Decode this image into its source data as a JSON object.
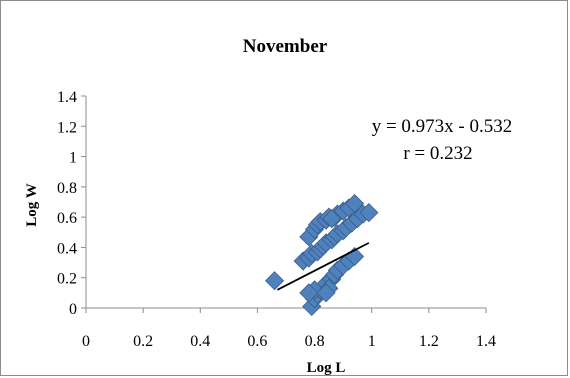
{
  "chart_data": {
    "type": "scatter",
    "title": "November",
    "xlabel": "Log L",
    "ylabel": "Log W",
    "xlim": [
      0,
      1.4
    ],
    "ylim": [
      0,
      1.4
    ],
    "xticks": [
      0,
      0.2,
      0.4,
      0.6,
      0.8,
      1,
      1.2,
      1.4
    ],
    "yticks": [
      0,
      0.2,
      0.4,
      0.6,
      0.8,
      1,
      1.2,
      1.4
    ],
    "grid": false,
    "legend": "none",
    "marker_color": "#4f81bd",
    "marker_stroke": "#385d8a",
    "trendline_color": "#000000",
    "annotation": {
      "equation": "y = 0.973x - 0.532",
      "r_value": "r = 0.232"
    },
    "trendline": {
      "x": [
        0.67,
        0.99
      ],
      "y": [
        0.12,
        0.43
      ]
    },
    "series": [
      {
        "points": [
          [
            0.66,
            0.18
          ],
          [
            0.78,
            0.47
          ],
          [
            0.8,
            0.52
          ],
          [
            0.81,
            0.55
          ],
          [
            0.82,
            0.57
          ],
          [
            0.84,
            0.58
          ],
          [
            0.85,
            0.6
          ],
          [
            0.87,
            0.6
          ],
          [
            0.88,
            0.62
          ],
          [
            0.9,
            0.64
          ],
          [
            0.92,
            0.66
          ],
          [
            0.94,
            0.69
          ],
          [
            0.86,
            0.59
          ],
          [
            0.76,
            0.31
          ],
          [
            0.78,
            0.33
          ],
          [
            0.79,
            0.36
          ],
          [
            0.81,
            0.37
          ],
          [
            0.82,
            0.39
          ],
          [
            0.83,
            0.41
          ],
          [
            0.84,
            0.43
          ],
          [
            0.86,
            0.45
          ],
          [
            0.87,
            0.47
          ],
          [
            0.88,
            0.49
          ],
          [
            0.9,
            0.51
          ],
          [
            0.91,
            0.53
          ],
          [
            0.93,
            0.56
          ],
          [
            0.95,
            0.59
          ],
          [
            0.97,
            0.62
          ],
          [
            0.99,
            0.63
          ],
          [
            0.79,
            0.01
          ],
          [
            0.8,
            0.06
          ],
          [
            0.81,
            0.09
          ],
          [
            0.82,
            0.12
          ],
          [
            0.83,
            0.14
          ],
          [
            0.84,
            0.16
          ],
          [
            0.86,
            0.19
          ],
          [
            0.87,
            0.22
          ],
          [
            0.88,
            0.25
          ],
          [
            0.9,
            0.28
          ],
          [
            0.92,
            0.31
          ],
          [
            0.94,
            0.34
          ],
          [
            0.8,
            0.12
          ],
          [
            0.78,
            0.1
          ],
          [
            0.85,
            0.13
          ],
          [
            0.84,
            0.1
          ]
        ]
      }
    ]
  }
}
